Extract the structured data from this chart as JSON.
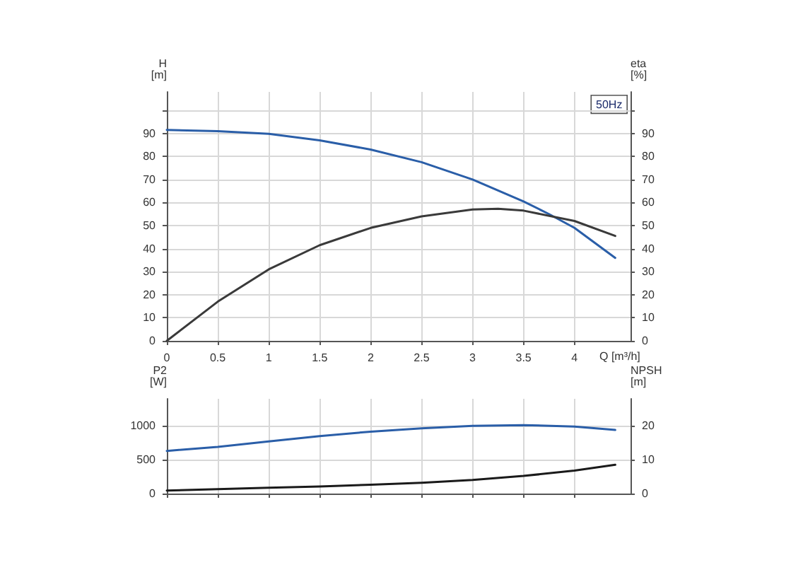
{
  "chart_data": [
    {
      "type": "line",
      "xlabel": "Q [m³/h]",
      "ylabel": "H\n[m]",
      "y2label": "eta\n[%]",
      "annotations": [
        "50Hz"
      ],
      "xlim": [
        0,
        4.55
      ],
      "xticks": [
        0,
        0.5,
        1.0,
        1.5,
        2.0,
        2.5,
        3.0,
        3.5,
        4.0
      ],
      "ylim": [
        0,
        108
      ],
      "yticks": [
        0,
        10,
        20,
        30,
        40,
        50,
        60,
        70,
        80,
        90,
        {
          "value": 100,
          "label": null
        }
      ],
      "y2lim": [
        0,
        108
      ],
      "y2ticks": [
        0,
        10,
        20,
        30,
        40,
        50,
        60,
        70,
        80,
        90,
        {
          "value": 100,
          "label": null
        }
      ],
      "grid": true,
      "marker": "none",
      "series": [
        {
          "color": "#2a5ea8",
          "x": [
            0,
            0.5,
            1.0,
            1.5,
            2.0,
            2.5,
            3.0,
            3.5,
            3.75,
            4.0,
            4.4
          ],
          "values": [
            91.5,
            91,
            89.8,
            87,
            83,
            77.5,
            70,
            60.5,
            55,
            49,
            36
          ]
        },
        {
          "color": "#3a3a3a",
          "axis": "y2",
          "x": [
            0,
            0.5,
            1.0,
            1.5,
            2.0,
            2.5,
            3.0,
            3.25,
            3.5,
            4.0,
            4.4
          ],
          "values": [
            0,
            17,
            31,
            41.5,
            49,
            54,
            57,
            57.3,
            56.5,
            52,
            45.5
          ]
        }
      ]
    },
    {
      "type": "line",
      "ylabel": "P2\n[W]",
      "y2label": "NPSH\n[m]",
      "tick_labels": "y",
      "xlim": [
        0,
        4.55
      ],
      "xticks": [
        0,
        0.5,
        1.0,
        1.5,
        2.0,
        2.5,
        3.0,
        3.5,
        4.0
      ],
      "ylim": [
        0,
        1400
      ],
      "yticks": [
        0,
        500,
        1000
      ],
      "y2lim": [
        0,
        28
      ],
      "y2ticks": [
        0,
        10,
        20
      ],
      "grid": true,
      "marker": "none",
      "series": [
        {
          "color": "#2a5ea8",
          "x": [
            0,
            0.5,
            1.0,
            1.5,
            2.0,
            2.5,
            3.0,
            3.5,
            4.0,
            4.4
          ],
          "values": [
            630,
            690,
            770,
            850,
            915,
            965,
            1000,
            1012,
            990,
            940
          ]
        },
        {
          "color": "#1a1a1a",
          "axis": "y2",
          "x": [
            0,
            0.5,
            1.0,
            1.5,
            2.0,
            2.5,
            3.0,
            3.5,
            4.0,
            4.4
          ],
          "values": [
            0.9,
            1.3,
            1.7,
            2.1,
            2.6,
            3.2,
            4.0,
            5.2,
            6.8,
            8.5
          ]
        }
      ]
    }
  ]
}
